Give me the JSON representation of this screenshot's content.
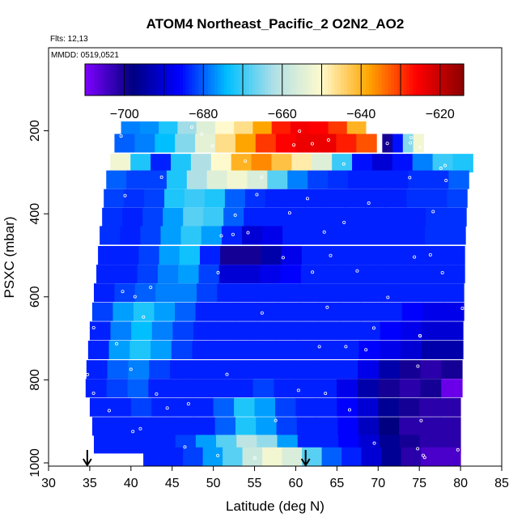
{
  "chart_data": {
    "type": "heatmap",
    "title": "ATOM4 Northeast_Pacific_2 O2N2_AO2",
    "notes": [
      "Flts: 12,13",
      "MMDD: 0519,0521"
    ],
    "xlabel": "Latitude (deg N)",
    "ylabel": "PSXC (mbar)",
    "xlim": [
      30,
      85
    ],
    "ylim": [
      1000,
      0
    ],
    "x_ticks": [
      30,
      35,
      40,
      45,
      50,
      55,
      60,
      65,
      70,
      75,
      80,
      85
    ],
    "y_ticks": [
      200,
      400,
      600,
      800,
      1000
    ],
    "grid": false,
    "colorbar": {
      "position": "top",
      "range": [
        -710,
        -614
      ],
      "ticks": [
        -700,
        -680,
        -660,
        -640,
        -620
      ],
      "bounds": [
        -710,
        -700,
        -690,
        -680,
        -670,
        -660,
        -650,
        -640,
        -630,
        -620,
        -614
      ],
      "colors": [
        "#7f00ff",
        "#000080",
        "#0000ff",
        "#00bfff",
        "#b0e0e6",
        "#fffacd",
        "#ffa500",
        "#ff0000",
        "#8b0000"
      ]
    },
    "arrows_at_latitude": [
      34.7,
      61.2
    ],
    "rows": [
      {
        "p": 200,
        "x0": 38.8,
        "x1": 68.5,
        "v": [
          -678,
          -677,
          -672,
          -663,
          -655,
          -650,
          -646,
          -638,
          -628,
          -625,
          -626,
          -630,
          -640
        ]
      },
      {
        "p": 230,
        "x0": 38.0,
        "x1": 69.8,
        "v": [
          -680,
          -678,
          -674,
          -665,
          -654,
          -646,
          -638,
          -630,
          -626,
          -624,
          -624,
          -628,
          -632
        ]
      },
      {
        "p": 230,
        "x0": 70.5,
        "x1": 75.5,
        "v": [
          -700,
          -685,
          -665,
          -652
        ]
      },
      {
        "p": 278,
        "x0": 37.5,
        "x1": 81.5,
        "v": [
          -652,
          -672,
          -684,
          -672,
          -662,
          -650,
          -640,
          -636,
          -642,
          -648,
          -655,
          -670,
          -685,
          -690,
          -685,
          -678,
          -670,
          -672
        ]
      },
      {
        "p": 318,
        "x0": 37.0,
        "x1": 81.0,
        "v": [
          -680,
          -682,
          -682,
          -672,
          -662,
          -655,
          -652,
          -656,
          -668,
          -678,
          -682,
          -683,
          -684,
          -684,
          -684,
          -683,
          -683,
          -680
        ]
      },
      {
        "p": 363,
        "x0": 36.7,
        "x1": 80.8,
        "v": [
          -682,
          -683,
          -682,
          -672,
          -670,
          -672,
          -680,
          -683,
          -684,
          -684,
          -684,
          -684,
          -684,
          -684,
          -684,
          -683,
          -683,
          -682
        ]
      },
      {
        "p": 408,
        "x0": 36.5,
        "x1": 80.7,
        "v": [
          -683,
          -684,
          -682,
          -676,
          -668,
          -670,
          -680,
          -684,
          -684,
          -684,
          -684,
          -684,
          -684,
          -684,
          -684,
          -684,
          -683,
          -683
        ]
      },
      {
        "p": 452,
        "x0": 36.2,
        "x1": 80.6,
        "v": [
          -683,
          -684,
          -682,
          -676,
          -671,
          -676,
          -684,
          -690,
          -688,
          -684,
          -684,
          -684,
          -684,
          -684,
          -684,
          -684,
          -683,
          -683
        ]
      },
      {
        "p": 500,
        "x0": 36.0,
        "x1": 80.5,
        "v": [
          -684,
          -684,
          -682,
          -676,
          -673,
          -684,
          -700,
          -700,
          -694,
          -688,
          -684,
          -684,
          -684,
          -684,
          -684,
          -684,
          -684,
          -684
        ]
      },
      {
        "p": 545,
        "x0": 35.8,
        "x1": 80.5,
        "v": [
          -684,
          -684,
          -682,
          -678,
          -676,
          -682,
          -690,
          -690,
          -688,
          -686,
          -684,
          -684,
          -684,
          -684,
          -684,
          -684,
          -684,
          -684
        ]
      },
      {
        "p": 590,
        "x0": 35.5,
        "x1": 80.4,
        "v": [
          -684,
          -682,
          -680,
          -678,
          -678,
          -682,
          -684,
          -684,
          -684,
          -684,
          -684,
          -684,
          -684,
          -684,
          -684,
          -684,
          -684,
          -684
        ]
      },
      {
        "p": 636,
        "x0": 35.3,
        "x1": 80.4,
        "v": [
          -682,
          -676,
          -672,
          -676,
          -680,
          -684,
          -684,
          -684,
          -684,
          -684,
          -684,
          -684,
          -684,
          -684,
          -684,
          -686,
          -688,
          -688
        ]
      },
      {
        "p": 682,
        "x0": 35.0,
        "x1": 80.3,
        "v": [
          -684,
          -678,
          -674,
          -678,
          -682,
          -684,
          -684,
          -684,
          -684,
          -684,
          -684,
          -684,
          -684,
          -684,
          -686,
          -688,
          -690,
          -690
        ]
      },
      {
        "p": 728,
        "x0": 34.8,
        "x1": 80.3,
        "v": [
          -684,
          -676,
          -672,
          -676,
          -682,
          -684,
          -684,
          -684,
          -684,
          -684,
          -684,
          -684,
          -684,
          -686,
          -688,
          -690,
          -694,
          -694
        ]
      },
      {
        "p": 775,
        "x0": 34.6,
        "x1": 80.2,
        "v": [
          -684,
          -680,
          -678,
          -682,
          -684,
          -684,
          -684,
          -684,
          -684,
          -684,
          -684,
          -684,
          -684,
          -688,
          -694,
          -700,
          -702,
          -700
        ]
      },
      {
        "p": 820,
        "x0": 34.5,
        "x1": 80.2,
        "v": [
          -684,
          -682,
          -680,
          -684,
          -684,
          -684,
          -684,
          -684,
          -682,
          -684,
          -684,
          -684,
          -688,
          -694,
          -700,
          -702,
          -700,
          -708
        ]
      },
      {
        "p": 866,
        "x0": 35.0,
        "x1": 80.0,
        "v": [
          -684,
          -684,
          -682,
          -684,
          -684,
          -684,
          -680,
          -672,
          -676,
          -682,
          -684,
          -684,
          -686,
          -690,
          -696,
          -700,
          -702,
          -702
        ]
      },
      {
        "p": 912,
        "x0": 35.3,
        "x1": 80.0,
        "v": [
          -684,
          -684,
          -684,
          -684,
          -684,
          -684,
          -680,
          -672,
          -676,
          -682,
          -684,
          -684,
          -686,
          -692,
          -698,
          -702,
          -702,
          -702
        ]
      },
      {
        "p": 955,
        "x0": 35.5,
        "x1": 80.0,
        "v": [
          -684,
          -684,
          -684,
          -684,
          -682,
          -676,
          -668,
          -660,
          -664,
          -676,
          -684,
          -684,
          -686,
          -690,
          -696,
          -700,
          -702,
          -702
        ]
      },
      {
        "p": 985,
        "x0": 41.5,
        "x1": 80.0,
        "v": [
          -684,
          -684,
          -682,
          -676,
          -668,
          -658,
          -652,
          -656,
          -668,
          -680,
          -684,
          -690,
          -696,
          -702,
          -705,
          -705
        ]
      }
    ]
  }
}
